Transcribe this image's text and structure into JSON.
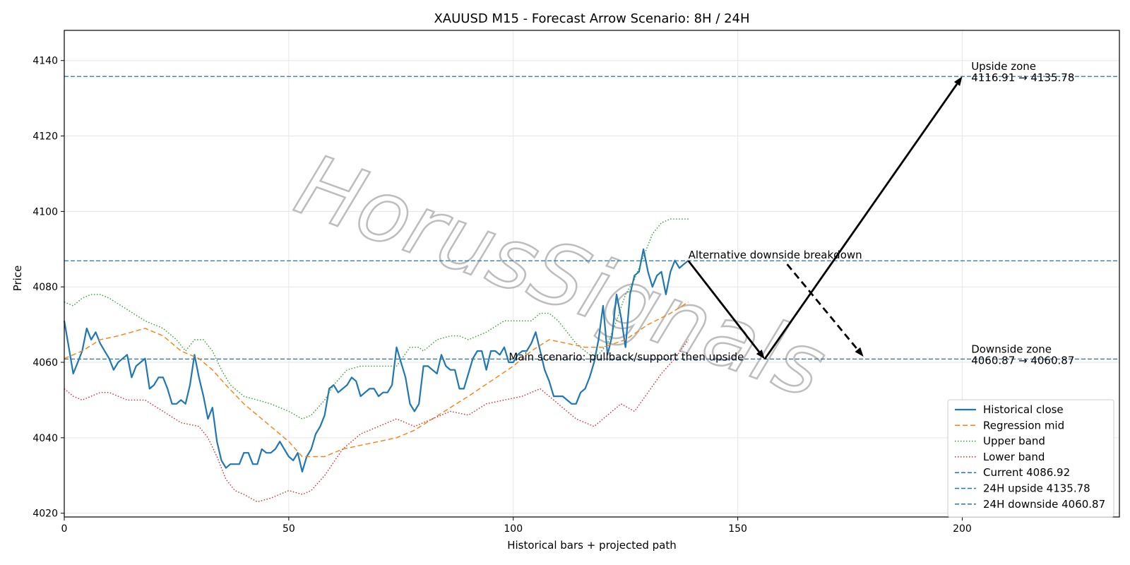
{
  "chart_data": {
    "type": "line",
    "title": "XAUUSD M15 - Forecast Arrow Scenario: 8H / 24H",
    "xlabel": "Historical bars + projected path",
    "ylabel": "Price",
    "xlim": [
      0,
      235
    ],
    "ylim": [
      4019,
      4148
    ],
    "xticks": [
      0,
      50,
      100,
      150,
      200
    ],
    "yticks": [
      4020,
      4040,
      4060,
      4080,
      4100,
      4120,
      4140
    ],
    "grid": true,
    "legend_position": "lower-right",
    "watermark": "HorusSignals",
    "series": [
      {
        "name": "Historical close",
        "style": "solid",
        "color": "#1f77b4",
        "x": [
          0,
          1,
          2,
          3,
          4,
          5,
          6,
          7,
          8,
          9,
          10,
          11,
          12,
          13,
          14,
          15,
          16,
          17,
          18,
          19,
          20,
          21,
          22,
          23,
          24,
          25,
          26,
          27,
          28,
          29,
          30,
          31,
          32,
          33,
          34,
          35,
          36,
          37,
          38,
          39,
          40,
          41,
          42,
          43,
          44,
          45,
          46,
          47,
          48,
          49,
          50,
          51,
          52,
          53,
          54,
          55,
          56,
          57,
          58,
          59,
          60,
          61,
          62,
          63,
          64,
          65,
          66,
          67,
          68,
          69,
          70,
          71,
          72,
          73,
          74,
          75,
          76,
          77,
          78,
          79,
          80,
          81,
          82,
          83,
          84,
          85,
          86,
          87,
          88,
          89,
          90,
          91,
          92,
          93,
          94,
          95,
          96,
          97,
          98,
          99,
          100,
          101,
          102,
          103,
          104,
          105,
          106,
          107,
          108,
          109,
          110,
          111,
          112,
          113,
          114,
          115,
          116,
          117,
          118,
          119,
          120,
          121,
          122,
          123,
          124,
          125,
          126,
          127,
          128,
          129,
          130,
          131,
          132,
          133,
          134,
          135,
          136,
          137,
          138,
          139
        ],
        "values": [
          4071,
          4064,
          4057,
          4060,
          4063,
          4069,
          4066,
          4068,
          4065,
          4063,
          4061,
          4058,
          4060,
          4061,
          4062,
          4056,
          4059,
          4060,
          4061,
          4053,
          4054,
          4056,
          4056,
          4053,
          4049,
          4049,
          4050,
          4049,
          4054,
          4062,
          4056,
          4051,
          4045,
          4048,
          4039,
          4034,
          4032,
          4033,
          4033,
          4033,
          4036,
          4036,
          4033,
          4033,
          4037,
          4036,
          4036,
          4037,
          4039,
          4037,
          4035,
          4034,
          4036,
          4031,
          4035,
          4037,
          4041,
          4043,
          4046,
          4053,
          4054,
          4052,
          4053,
          4054,
          4056,
          4055,
          4051,
          4052,
          4053,
          4053,
          4051,
          4052,
          4052,
          4054,
          4064,
          4060,
          4056,
          4049,
          4047,
          4049,
          4059,
          4059,
          4058,
          4057,
          4062,
          4059,
          4058,
          4058,
          4053,
          4053,
          4057,
          4061,
          4063,
          4063,
          4058,
          4063,
          4063,
          4062,
          4064,
          4060,
          4060,
          4062,
          4063,
          4063,
          4065,
          4068,
          4063,
          4058,
          4055,
          4051,
          4051,
          4051,
          4050,
          4049,
          4049,
          4052,
          4053,
          4056,
          4060,
          4066,
          4075,
          4062,
          4067,
          4078,
          4072,
          4064,
          4078,
          4083,
          4084,
          4090,
          4084,
          4080,
          4083,
          4084,
          4078,
          4084,
          4087,
          4085,
          4086,
          4087
        ]
      },
      {
        "name": "Regression mid",
        "style": "dashed",
        "color": "#ff7f0e",
        "x": [
          0,
          4,
          8,
          12,
          15,
          18,
          22,
          26,
          30,
          33,
          36,
          40,
          45,
          50,
          53,
          55,
          58,
          62,
          66,
          70,
          74,
          78,
          82,
          86,
          90,
          95,
          100,
          104,
          108,
          112,
          116,
          120,
          125,
          130,
          135,
          139
        ],
        "values": [
          4061,
          4063,
          4066,
          4067,
          4068,
          4069,
          4067,
          4063,
          4061,
          4058,
          4054,
          4049,
          4044,
          4039,
          4035,
          4035,
          4035,
          4037,
          4038,
          4039,
          4040,
          4042,
          4045,
          4048,
          4051,
          4055,
          4059,
          4063,
          4066,
          4065,
          4064,
          4064,
          4066,
          4070,
          4073,
          4076
        ]
      },
      {
        "name": "Upper band",
        "style": "dotted",
        "color": "#2ca02c",
        "x": [
          0,
          2,
          4,
          6,
          8,
          10,
          14,
          18,
          22,
          25,
          27,
          29,
          31,
          33,
          35,
          37,
          40,
          43,
          46,
          50,
          53,
          55,
          58,
          60,
          63,
          66,
          70,
          74,
          77,
          79,
          80,
          83,
          86,
          88,
          90,
          94,
          98,
          100,
          104,
          106,
          108,
          110,
          114,
          117,
          119,
          121,
          123,
          125,
          127,
          129,
          131,
          133,
          135,
          137,
          139
        ],
        "values": [
          4076,
          4075,
          4077,
          4078,
          4078,
          4077,
          4074,
          4071,
          4069,
          4066,
          4063,
          4066,
          4066,
          4063,
          4058,
          4054,
          4051,
          4050,
          4049,
          4047,
          4045,
          4046,
          4050,
          4054,
          4058,
          4059,
          4059,
          4059,
          4064,
          4064,
          4063,
          4066,
          4067,
          4067,
          4066,
          4068,
          4071,
          4071,
          4071,
          4073,
          4073,
          4071,
          4065,
          4062,
          4062,
          4065,
          4071,
          4078,
          4082,
          4088,
          4094,
          4097,
          4098,
          4098,
          4098
        ]
      },
      {
        "name": "Lower band",
        "style": "dotted",
        "color": "#d62728",
        "x": [
          0,
          2,
          4,
          6,
          8,
          10,
          14,
          18,
          22,
          26,
          30,
          32,
          34,
          36,
          38,
          40,
          43,
          46,
          50,
          53,
          55,
          58,
          62,
          66,
          70,
          74,
          78,
          82,
          86,
          90,
          94,
          98,
          102,
          106,
          110,
          114,
          118,
          121,
          124,
          127,
          130,
          133,
          136,
          139
        ],
        "values": [
          4053,
          4051,
          4050,
          4051,
          4052,
          4052,
          4050,
          4050,
          4047,
          4044,
          4043,
          4040,
          4035,
          4029,
          4026,
          4025,
          4023,
          4024,
          4026,
          4025,
          4026,
          4030,
          4037,
          4041,
          4043,
          4045,
          4043,
          4045,
          4047,
          4046,
          4049,
          4050,
          4051,
          4053,
          4049,
          4045,
          4043,
          4046,
          4049,
          4047,
          4052,
          4057,
          4061,
          4066
        ]
      },
      {
        "name": "Current 4086.92",
        "style": "hline",
        "color": "#1f77b4",
        "y": 4086.92
      },
      {
        "name": "24H upside 4135.78",
        "style": "hline",
        "color": "#1f77b4",
        "y": 4135.78
      },
      {
        "name": "24H downside 4060.87",
        "style": "hline",
        "color": "#1f77b4",
        "y": 4060.87
      }
    ],
    "arrows": [
      {
        "from": [
          139,
          4086.92
        ],
        "to": [
          156,
          4060.87
        ],
        "style": "solid"
      },
      {
        "from": [
          156,
          4060.87
        ],
        "to": [
          200,
          4135.78
        ],
        "style": "solid"
      },
      {
        "from": [
          161,
          4086.0
        ],
        "to": [
          178,
          4061.5
        ],
        "style": "dashed"
      }
    ],
    "annotations": [
      {
        "text": "Upside zone",
        "x": 202,
        "y": 4137.5
      },
      {
        "text": "4116.91 → 4135.78",
        "x": 202,
        "y": 4134.5
      },
      {
        "text": "Alternative downside breakdown",
        "x": 139,
        "y": 4087.5
      },
      {
        "text": "Main scenario: pullback/support then upside",
        "x": 99,
        "y": 4060.5
      },
      {
        "text": "Downside zone",
        "x": 202,
        "y": 4062.5
      },
      {
        "text": "4060.87 → 4060.87",
        "x": 202,
        "y": 4059.5
      }
    ]
  }
}
